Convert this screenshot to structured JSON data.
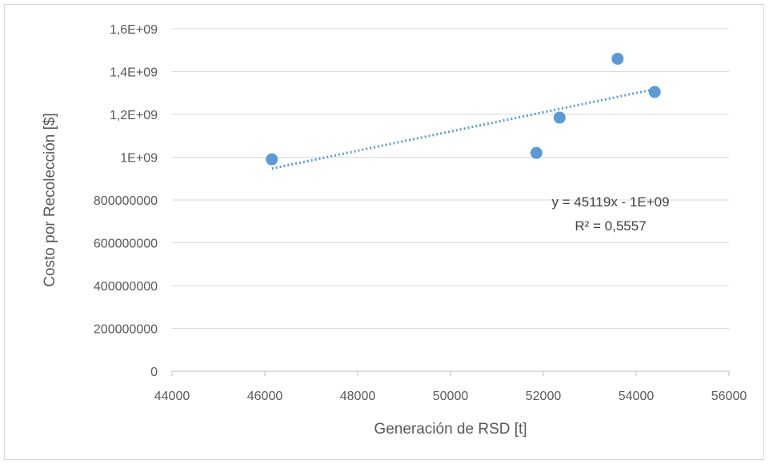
{
  "chart_data": {
    "type": "scatter",
    "title": "",
    "xlabel": "Generación de RSD [t]",
    "ylabel": "Costo por Recolección [$]",
    "xlim": [
      44000,
      56000
    ],
    "ylim": [
      0,
      1600000000
    ],
    "x_ticks": [
      "44000",
      "46000",
      "48000",
      "50000",
      "52000",
      "54000",
      "56000"
    ],
    "y_ticks": [
      "0",
      "200000000",
      "400000000",
      "600000000",
      "800000000",
      "1E+09",
      "1,2E+09",
      "1,4E+09",
      "1,6E+09"
    ],
    "grid": true,
    "legend": "none",
    "series": [
      {
        "points": [
          {
            "x": 46150,
            "y": 990000000
          },
          {
            "x": 51850,
            "y": 1020000000
          },
          {
            "x": 52350,
            "y": 1185000000
          },
          {
            "x": 53600,
            "y": 1460000000
          },
          {
            "x": 54400,
            "y": 1305000000
          }
        ],
        "color": "#5b9bd5"
      }
    ],
    "trendline": {
      "type": "linear",
      "x_range": [
        46150,
        54400
      ],
      "y_range": [
        947000000,
        1318000000
      ],
      "color": "#5b9bd5",
      "style": "dotted"
    },
    "annotations": {
      "equation": "y = 45119x - 1E+09",
      "r_squared": "R² = 0,5557"
    }
  }
}
